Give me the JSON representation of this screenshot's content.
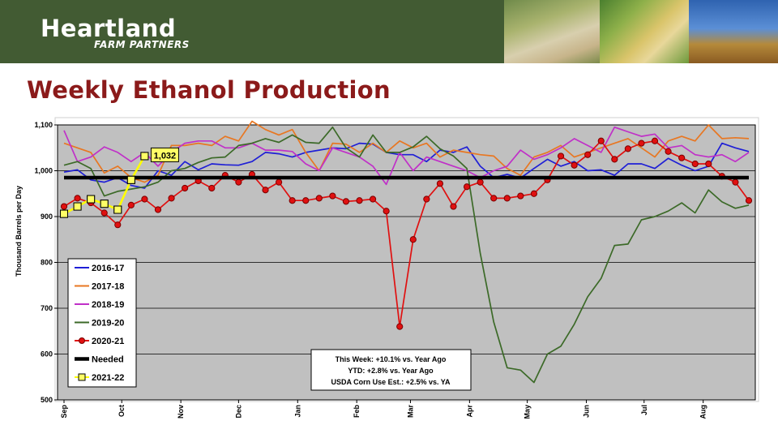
{
  "header": {
    "logo_main": "Heartland",
    "logo_sub": "FARM PARTNERS"
  },
  "slide": {
    "title": "Weekly Ethanol Production"
  },
  "chart_data": {
    "type": "line",
    "ylabel": "Thousand Barrels per Day",
    "ylim": [
      500,
      1100
    ],
    "yticks": [
      "500",
      "600",
      "700",
      "800",
      "900",
      "1,000",
      "1,100"
    ],
    "xlim": [
      0,
      51
    ],
    "xtick_labels": [
      {
        "label": "Sep",
        "week": 0
      },
      {
        "label": "Oct",
        "week": 4.3
      },
      {
        "label": "Nov",
        "week": 8.7
      },
      {
        "label": "Dec",
        "week": 13
      },
      {
        "label": "Jan",
        "week": 17.4
      },
      {
        "label": "Feb",
        "week": 21.8
      },
      {
        "label": "Mar",
        "week": 25.8
      },
      {
        "label": "Apr",
        "week": 30.2
      },
      {
        "label": "May",
        "week": 34.5
      },
      {
        "label": "Jun",
        "week": 38.9
      },
      {
        "label": "Jul",
        "week": 43.2
      },
      {
        "label": "Aug",
        "week": 47.6
      }
    ],
    "needed": {
      "name": "Needed",
      "value": 985,
      "color": "#000000"
    },
    "series": [
      {
        "name": "2016-17",
        "color": "#1f1fd6",
        "marker": "none",
        "values": [
          997,
          1002,
          980,
          975,
          985,
          968,
          962,
          1000,
          990,
          1020,
          1002,
          1015,
          1013,
          1012,
          1020,
          1040,
          1037,
          1030,
          1040,
          1045,
          1050,
          1048,
          1060,
          1058,
          1040,
          1035,
          1035,
          1020,
          1045,
          1040,
          1052,
          1010,
          985,
          992,
          984,
          1005,
          1025,
          1010,
          1020,
          1000,
          1002,
          990,
          1015,
          1015,
          1005,
          1027,
          1012,
          1000,
          1010,
          1060,
          1050,
          1042
        ]
      },
      {
        "name": "2017-18",
        "color": "#e87722",
        "marker": "none",
        "values": [
          1060,
          1050,
          1040,
          995,
          1010,
          985,
          975,
          990,
          1055,
          1055,
          1060,
          1055,
          1075,
          1065,
          1108,
          1090,
          1078,
          1090,
          1040,
          1000,
          1060,
          1058,
          1040,
          1060,
          1040,
          1065,
          1050,
          1060,
          1030,
          1045,
          1040,
          1035,
          1032,
          1005,
          990,
          1030,
          1040,
          1055,
          1030,
          1040,
          1050,
          1060,
          1070,
          1050,
          1030,
          1065,
          1075,
          1065,
          1100,
          1070,
          1072,
          1070
        ]
      },
      {
        "name": "2018-19",
        "color": "#c030c8",
        "marker": "none",
        "values": [
          1088,
          1020,
          1030,
          1052,
          1040,
          1020,
          1040,
          1010,
          1040,
          1060,
          1065,
          1065,
          1050,
          1050,
          1060,
          1045,
          1045,
          1042,
          1015,
          1000,
          1050,
          1040,
          1030,
          1010,
          970,
          1040,
          1000,
          1030,
          1020,
          1010,
          1000,
          985,
          1000,
          1010,
          1045,
          1025,
          1035,
          1050,
          1070,
          1055,
          1040,
          1095,
          1085,
          1075,
          1080,
          1050,
          1055,
          1035,
          1030,
          1035,
          1020,
          1040
        ]
      },
      {
        "name": "2019-20",
        "color": "#3c6a28",
        "marker": "none",
        "values": [
          1012,
          1020,
          1005,
          945,
          955,
          960,
          965,
          975,
          1000,
          1005,
          1018,
          1028,
          1030,
          1055,
          1060,
          1070,
          1062,
          1078,
          1062,
          1060,
          1095,
          1050,
          1030,
          1078,
          1040,
          1040,
          1052,
          1075,
          1048,
          1032,
          1005,
          820,
          670,
          570,
          565,
          538,
          600,
          617,
          665,
          725,
          765,
          837,
          840,
          893,
          900,
          912,
          930,
          908,
          958,
          932,
          918,
          925
        ]
      },
      {
        "name": "2020-21",
        "color": "#e01010",
        "marker": "circle",
        "values": [
          922,
          940,
          930,
          908,
          882,
          925,
          938,
          915,
          940,
          962,
          978,
          962,
          990,
          975,
          992,
          958,
          975,
          935,
          935,
          940,
          945,
          933,
          935,
          938,
          912,
          660,
          850,
          938,
          972,
          922,
          965,
          975,
          940,
          940,
          945,
          950,
          980,
          1032,
          1012,
          1035,
          1065,
          1025,
          1048,
          1060,
          1065,
          1042,
          1028,
          1015,
          1015,
          988,
          975,
          935
        ]
      },
      {
        "name": "2021-22",
        "color": "#ffff00",
        "marker": "square",
        "values": [
          906,
          922,
          938,
          928,
          915,
          980,
          1032
        ]
      }
    ],
    "data_labels": [
      {
        "series": "2021-22",
        "week": 6,
        "text": "1,032"
      }
    ],
    "annotation_lines": [
      "This Week:  +10.1% vs. Year Ago",
      "YTD:  +2.8% vs. Year Ago",
      "USDA Corn Use Est.: +2.5% vs. YA"
    ],
    "grid": true,
    "legend_position": "bottom-left"
  }
}
